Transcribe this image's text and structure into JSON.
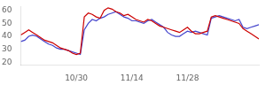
{
  "chart_data": {
    "type": "line",
    "x": [
      0,
      1,
      2,
      3,
      4,
      5,
      6,
      7,
      8,
      9,
      10,
      11,
      12,
      13,
      14,
      15,
      16,
      17,
      18,
      19,
      20,
      21,
      22,
      23,
      24,
      25,
      26,
      27,
      28,
      29,
      30,
      31,
      32,
      33,
      34,
      35,
      36,
      37,
      38,
      39,
      40,
      41,
      42,
      43,
      44,
      45,
      46,
      47,
      48,
      49,
      50,
      51,
      52,
      53,
      54,
      55,
      56,
      57,
      58,
      59,
      60
    ],
    "series": [
      {
        "color": "#cc0000",
        "values": [
          41,
          43,
          45,
          43,
          41,
          39,
          37,
          36,
          35,
          33,
          31,
          30,
          29,
          27,
          26,
          27,
          55,
          58,
          57,
          55,
          54,
          60,
          62,
          61,
          59,
          58,
          56,
          57,
          55,
          53,
          52,
          51,
          53,
          52,
          50,
          48,
          47,
          46,
          45,
          44,
          43,
          45,
          47,
          44,
          42,
          42,
          43,
          44,
          55,
          56,
          55,
          54,
          53,
          52,
          51,
          50,
          46,
          44,
          42,
          40,
          38
        ]
      },
      {
        "color": "#4444cc",
        "values": [
          36,
          37,
          40,
          41,
          40,
          38,
          36,
          34,
          33,
          31,
          30,
          30,
          29,
          28,
          27,
          26,
          45,
          50,
          53,
          52,
          54,
          55,
          57,
          58,
          59,
          57,
          55,
          54,
          52,
          52,
          51,
          50,
          52,
          53,
          51,
          49,
          47,
          43,
          41,
          40,
          40,
          42,
          44,
          43,
          44,
          43,
          42,
          41,
          54,
          55,
          56,
          55,
          54,
          53,
          52,
          53,
          47,
          46,
          47,
          48,
          49
        ]
      }
    ],
    "xlim": [
      0,
      60
    ],
    "xticks": [
      {
        "value": 14,
        "label": "10/30"
      },
      {
        "value": 28,
        "label": "11/14"
      },
      {
        "value": 42,
        "label": "11/28"
      },
      {
        "value": 56,
        "label": ""
      }
    ],
    "ylim": [
      18,
      63
    ],
    "yticks": [
      20,
      30,
      40,
      50,
      60
    ],
    "grid": false
  }
}
